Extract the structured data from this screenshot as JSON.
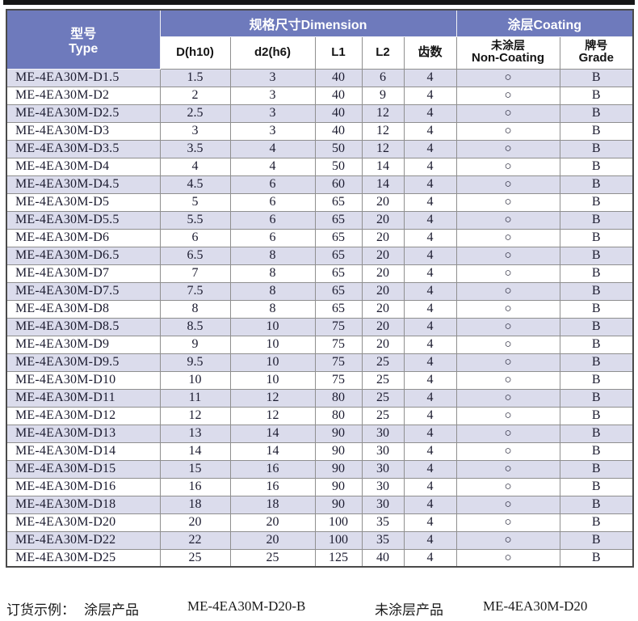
{
  "colors": {
    "header_bg": "#6E7ABC",
    "row_alt_bg": "#DBDCEC",
    "grid_line": "#8f8f8f",
    "top_bar": "#161616",
    "text": "#1c1c30"
  },
  "header": {
    "type_label_cn": "型号",
    "type_label_en": "Type",
    "dimension_group": "规格尺寸Dimension",
    "coating_group": "涂层Coating",
    "columns": {
      "d": "D(h10)",
      "d2": "d2(h6)",
      "l1": "L1",
      "l2": "L2",
      "teeth": "齿数",
      "non_coating_cn": "未涂层",
      "non_coating_en": "Non-Coating",
      "grade_cn": "牌号",
      "grade_en": "Grade"
    }
  },
  "non_coating_mark": "○",
  "rows": [
    {
      "type": "ME-4EA30M-D1.5",
      "d": "1.5",
      "d2": "3",
      "l1": "40",
      "l2": "6",
      "teeth": "4",
      "non_coating": "○",
      "grade": "B"
    },
    {
      "type": "ME-4EA30M-D2",
      "d": "2",
      "d2": "3",
      "l1": "40",
      "l2": "9",
      "teeth": "4",
      "non_coating": "○",
      "grade": "B"
    },
    {
      "type": "ME-4EA30M-D2.5",
      "d": "2.5",
      "d2": "3",
      "l1": "40",
      "l2": "12",
      "teeth": "4",
      "non_coating": "○",
      "grade": "B"
    },
    {
      "type": "ME-4EA30M-D3",
      "d": "3",
      "d2": "3",
      "l1": "40",
      "l2": "12",
      "teeth": "4",
      "non_coating": "○",
      "grade": "B"
    },
    {
      "type": "ME-4EA30M-D3.5",
      "d": "3.5",
      "d2": "4",
      "l1": "50",
      "l2": "12",
      "teeth": "4",
      "non_coating": "○",
      "grade": "B"
    },
    {
      "type": "ME-4EA30M-D4",
      "d": "4",
      "d2": "4",
      "l1": "50",
      "l2": "14",
      "teeth": "4",
      "non_coating": "○",
      "grade": "B"
    },
    {
      "type": "ME-4EA30M-D4.5",
      "d": "4.5",
      "d2": "6",
      "l1": "60",
      "l2": "14",
      "teeth": "4",
      "non_coating": "○",
      "grade": "B"
    },
    {
      "type": "ME-4EA30M-D5",
      "d": "5",
      "d2": "6",
      "l1": "65",
      "l2": "20",
      "teeth": "4",
      "non_coating": "○",
      "grade": "B"
    },
    {
      "type": "ME-4EA30M-D5.5",
      "d": "5.5",
      "d2": "6",
      "l1": "65",
      "l2": "20",
      "teeth": "4",
      "non_coating": "○",
      "grade": "B"
    },
    {
      "type": "ME-4EA30M-D6",
      "d": "6",
      "d2": "6",
      "l1": "65",
      "l2": "20",
      "teeth": "4",
      "non_coating": "○",
      "grade": "B"
    },
    {
      "type": "ME-4EA30M-D6.5",
      "d": "6.5",
      "d2": "8",
      "l1": "65",
      "l2": "20",
      "teeth": "4",
      "non_coating": "○",
      "grade": "B"
    },
    {
      "type": "ME-4EA30M-D7",
      "d": "7",
      "d2": "8",
      "l1": "65",
      "l2": "20",
      "teeth": "4",
      "non_coating": "○",
      "grade": "B"
    },
    {
      "type": "ME-4EA30M-D7.5",
      "d": "7.5",
      "d2": "8",
      "l1": "65",
      "l2": "20",
      "teeth": "4",
      "non_coating": "○",
      "grade": "B"
    },
    {
      "type": "ME-4EA30M-D8",
      "d": "8",
      "d2": "8",
      "l1": "65",
      "l2": "20",
      "teeth": "4",
      "non_coating": "○",
      "grade": "B"
    },
    {
      "type": "ME-4EA30M-D8.5",
      "d": "8.5",
      "d2": "10",
      "l1": "75",
      "l2": "20",
      "teeth": "4",
      "non_coating": "○",
      "grade": "B"
    },
    {
      "type": "ME-4EA30M-D9",
      "d": "9",
      "d2": "10",
      "l1": "75",
      "l2": "20",
      "teeth": "4",
      "non_coating": "○",
      "grade": "B"
    },
    {
      "type": "ME-4EA30M-D9.5",
      "d": "9.5",
      "d2": "10",
      "l1": "75",
      "l2": "25",
      "teeth": "4",
      "non_coating": "○",
      "grade": "B"
    },
    {
      "type": "ME-4EA30M-D10",
      "d": "10",
      "d2": "10",
      "l1": "75",
      "l2": "25",
      "teeth": "4",
      "non_coating": "○",
      "grade": "B"
    },
    {
      "type": "ME-4EA30M-D11",
      "d": "11",
      "d2": "12",
      "l1": "80",
      "l2": "25",
      "teeth": "4",
      "non_coating": "○",
      "grade": "B"
    },
    {
      "type": "ME-4EA30M-D12",
      "d": "12",
      "d2": "12",
      "l1": "80",
      "l2": "25",
      "teeth": "4",
      "non_coating": "○",
      "grade": "B"
    },
    {
      "type": "ME-4EA30M-D13",
      "d": "13",
      "d2": "14",
      "l1": "90",
      "l2": "30",
      "teeth": "4",
      "non_coating": "○",
      "grade": "B"
    },
    {
      "type": "ME-4EA30M-D14",
      "d": "14",
      "d2": "14",
      "l1": "90",
      "l2": "30",
      "teeth": "4",
      "non_coating": "○",
      "grade": "B"
    },
    {
      "type": "ME-4EA30M-D15",
      "d": "15",
      "d2": "16",
      "l1": "90",
      "l2": "30",
      "teeth": "4",
      "non_coating": "○",
      "grade": "B"
    },
    {
      "type": "ME-4EA30M-D16",
      "d": "16",
      "d2": "16",
      "l1": "90",
      "l2": "30",
      "teeth": "4",
      "non_coating": "○",
      "grade": "B"
    },
    {
      "type": "ME-4EA30M-D18",
      "d": "18",
      "d2": "18",
      "l1": "90",
      "l2": "30",
      "teeth": "4",
      "non_coating": "○",
      "grade": "B"
    },
    {
      "type": "ME-4EA30M-D20",
      "d": "20",
      "d2": "20",
      "l1": "100",
      "l2": "35",
      "teeth": "4",
      "non_coating": "○",
      "grade": "B"
    },
    {
      "type": "ME-4EA30M-D22",
      "d": "22",
      "d2": "20",
      "l1": "100",
      "l2": "35",
      "teeth": "4",
      "non_coating": "○",
      "grade": "B"
    },
    {
      "type": "ME-4EA30M-D25",
      "d": "25",
      "d2": "25",
      "l1": "125",
      "l2": "40",
      "teeth": "4",
      "non_coating": "○",
      "grade": "B"
    }
  ],
  "footer": {
    "order_example_label": "订货示例：",
    "coated_label": "涂层产品",
    "coated_example": "ME-4EA30M-D20-B",
    "uncoated_label": "未涂层产品",
    "uncoated_example": "ME-4EA30M-D20"
  }
}
